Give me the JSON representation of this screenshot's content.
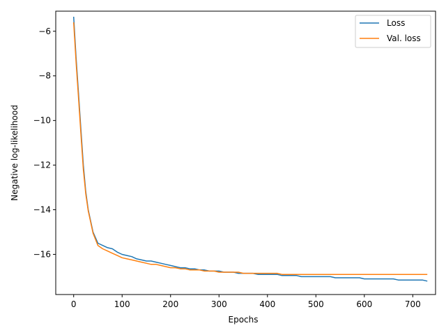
{
  "chart_data": {
    "type": "line",
    "title": "",
    "xlabel": "Epochs",
    "ylabel": "Negative log-likelihood",
    "xlim": [
      -37,
      747
    ],
    "ylim": [
      -17.8,
      -5.1
    ],
    "x_ticks": [
      0,
      100,
      200,
      300,
      400,
      500,
      600,
      700
    ],
    "y_ticks": [
      -6,
      -8,
      -10,
      -12,
      -14,
      -16
    ],
    "x_tick_labels": [
      "0",
      "100",
      "200",
      "300",
      "400",
      "500",
      "600",
      "700"
    ],
    "y_tick_labels": [
      "−6",
      "−8",
      "−10",
      "−12",
      "−14",
      "−16"
    ],
    "grid": false,
    "legend_position": "top-right",
    "series": [
      {
        "name": "Loss",
        "color": "#1f77b4",
        "x": [
          0,
          5,
          10,
          15,
          20,
          25,
          30,
          40,
          50,
          60,
          70,
          80,
          90,
          100,
          110,
          120,
          130,
          140,
          150,
          160,
          170,
          180,
          190,
          200,
          210,
          220,
          230,
          240,
          250,
          260,
          270,
          280,
          290,
          300,
          310,
          320,
          330,
          340,
          350,
          360,
          370,
          380,
          390,
          400,
          410,
          420,
          430,
          440,
          450,
          460,
          470,
          480,
          490,
          500,
          510,
          520,
          530,
          540,
          550,
          560,
          570,
          580,
          590,
          600,
          610,
          620,
          630,
          640,
          650,
          660,
          670,
          680,
          690,
          700,
          710,
          720,
          730
        ],
        "y": [
          -5.35,
          -7.2,
          -8.8,
          -10.4,
          -12.0,
          -13.2,
          -14.0,
          -15.0,
          -15.5,
          -15.6,
          -15.7,
          -15.75,
          -15.9,
          -16.0,
          -16.05,
          -16.1,
          -16.2,
          -16.25,
          -16.3,
          -16.3,
          -16.35,
          -16.4,
          -16.45,
          -16.5,
          -16.55,
          -16.6,
          -16.6,
          -16.65,
          -16.65,
          -16.7,
          -16.7,
          -16.75,
          -16.75,
          -16.75,
          -16.8,
          -16.8,
          -16.8,
          -16.85,
          -16.85,
          -16.85,
          -16.85,
          -16.9,
          -16.9,
          -16.9,
          -16.9,
          -16.9,
          -16.95,
          -16.95,
          -16.95,
          -16.95,
          -17.0,
          -17.0,
          -17.0,
          -17.0,
          -17.0,
          -17.0,
          -17.0,
          -17.05,
          -17.05,
          -17.05,
          -17.05,
          -17.05,
          -17.05,
          -17.1,
          -17.1,
          -17.1,
          -17.1,
          -17.1,
          -17.1,
          -17.1,
          -17.15,
          -17.15,
          -17.15,
          -17.15,
          -17.15,
          -17.15,
          -17.2
        ]
      },
      {
        "name": "Val. loss",
        "color": "#ff7f0e",
        "x": [
          0,
          5,
          10,
          15,
          20,
          25,
          30,
          40,
          50,
          60,
          70,
          80,
          90,
          100,
          110,
          120,
          130,
          140,
          150,
          160,
          170,
          180,
          190,
          200,
          210,
          220,
          230,
          240,
          250,
          260,
          270,
          280,
          290,
          300,
          310,
          320,
          330,
          340,
          350,
          360,
          370,
          380,
          390,
          400,
          410,
          420,
          430,
          440,
          450,
          460,
          470,
          480,
          490,
          500,
          510,
          520,
          530,
          540,
          550,
          560,
          570,
          580,
          590,
          600,
          610,
          620,
          630,
          640,
          650,
          660,
          670,
          680,
          690,
          700,
          710,
          720,
          730
        ],
        "y": [
          -5.6,
          -7.4,
          -9.0,
          -10.6,
          -12.2,
          -13.3,
          -14.05,
          -15.05,
          -15.6,
          -15.75,
          -15.85,
          -15.95,
          -16.05,
          -16.15,
          -16.2,
          -16.25,
          -16.3,
          -16.35,
          -16.4,
          -16.45,
          -16.45,
          -16.5,
          -16.55,
          -16.6,
          -16.6,
          -16.65,
          -16.65,
          -16.7,
          -16.7,
          -16.7,
          -16.75,
          -16.75,
          -16.75,
          -16.8,
          -16.8,
          -16.8,
          -16.8,
          -16.8,
          -16.85,
          -16.85,
          -16.85,
          -16.85,
          -16.85,
          -16.85,
          -16.85,
          -16.85,
          -16.9,
          -16.9,
          -16.9,
          -16.9,
          -16.9,
          -16.9,
          -16.9,
          -16.9,
          -16.9,
          -16.9,
          -16.9,
          -16.9,
          -16.9,
          -16.9,
          -16.9,
          -16.9,
          -16.9,
          -16.9,
          -16.9,
          -16.9,
          -16.9,
          -16.9,
          -16.9,
          -16.9,
          -16.9,
          -16.9,
          -16.9,
          -16.9,
          -16.9,
          -16.9,
          -16.9
        ]
      }
    ]
  }
}
